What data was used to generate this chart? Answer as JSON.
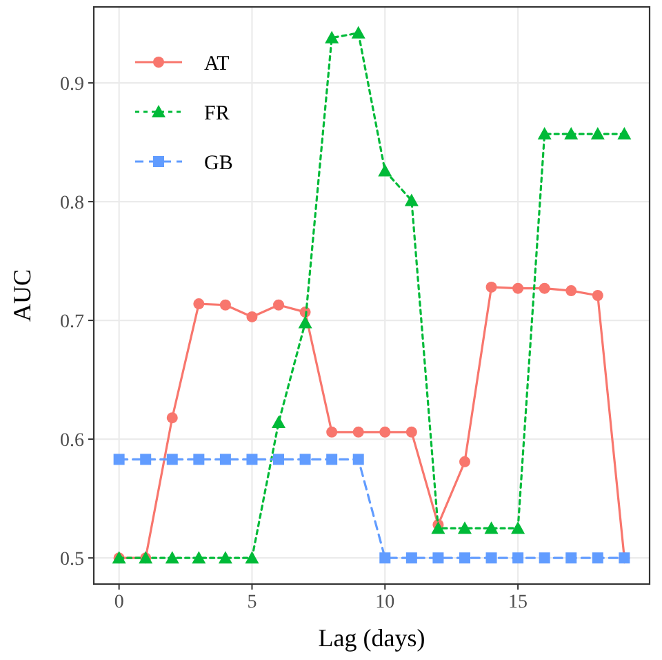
{
  "chart_data": {
    "type": "line",
    "xlabel": "Lag (days)",
    "ylabel": "AUC",
    "x": [
      0,
      1,
      2,
      3,
      4,
      5,
      6,
      7,
      8,
      9,
      10,
      11,
      12,
      13,
      14,
      15,
      16,
      17,
      18,
      19
    ],
    "series": [
      {
        "name": "AT",
        "color": "#f8766d",
        "marker": "circle",
        "line_style": "solid",
        "values": [
          0.5,
          0.5,
          0.618,
          0.714,
          0.713,
          0.703,
          0.713,
          0.707,
          0.606,
          0.606,
          0.606,
          0.606,
          0.528,
          0.581,
          0.728,
          0.727,
          0.727,
          0.725,
          0.721,
          0.5
        ]
      },
      {
        "name": "FR",
        "color": "#00ba38",
        "marker": "triangle",
        "line_style": "dotted",
        "values": [
          0.5,
          0.5,
          0.5,
          0.5,
          0.5,
          0.5,
          0.614,
          0.698,
          0.938,
          0.942,
          0.826,
          0.801,
          0.525,
          0.525,
          0.525,
          0.525,
          0.857,
          0.857,
          0.857,
          0.857
        ]
      },
      {
        "name": "GB",
        "color": "#619cff",
        "marker": "square",
        "line_style": "dashed",
        "values": [
          0.583,
          0.583,
          0.583,
          0.583,
          0.583,
          0.583,
          0.583,
          0.583,
          0.583,
          0.583,
          0.5,
          0.5,
          0.5,
          0.5,
          0.5,
          0.5,
          0.5,
          0.5,
          0.5,
          0.5
        ]
      }
    ],
    "xlim": [
      -0.95,
      19.95
    ],
    "ylim": [
      0.478,
      0.964
    ],
    "xticks": [
      0,
      5,
      10,
      15
    ],
    "yticks": [
      0.5,
      0.6,
      0.7,
      0.8,
      0.9
    ],
    "grid": true,
    "legend": "top left"
  }
}
